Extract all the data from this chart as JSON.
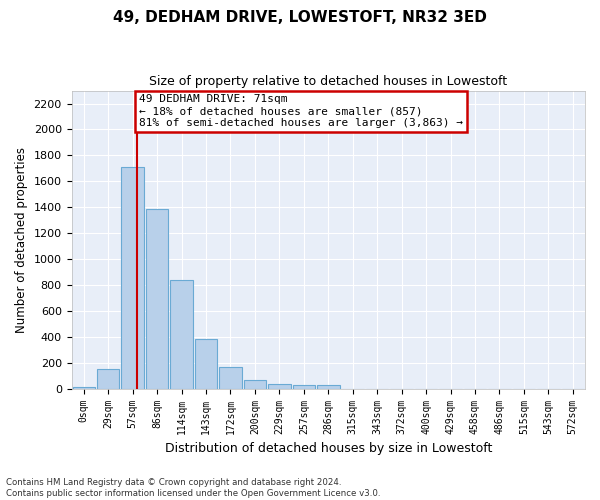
{
  "title": "49, DEDHAM DRIVE, LOWESTOFT, NR32 3ED",
  "subtitle": "Size of property relative to detached houses in Lowestoft",
  "xlabel": "Distribution of detached houses by size in Lowestoft",
  "ylabel": "Number of detached properties",
  "bar_color": "#b8d0ea",
  "bar_edge_color": "#6aaad4",
  "background_color": "#e8eef8",
  "grid_color": "#ffffff",
  "bin_labels": [
    "0sqm",
    "29sqm",
    "57sqm",
    "86sqm",
    "114sqm",
    "143sqm",
    "172sqm",
    "200sqm",
    "229sqm",
    "257sqm",
    "286sqm",
    "315sqm",
    "343sqm",
    "372sqm",
    "400sqm",
    "429sqm",
    "458sqm",
    "486sqm",
    "515sqm",
    "543sqm",
    "572sqm"
  ],
  "bar_values": [
    15,
    155,
    1710,
    1390,
    835,
    385,
    165,
    65,
    35,
    28,
    28,
    0,
    0,
    0,
    0,
    0,
    0,
    0,
    0,
    0,
    0
  ],
  "ylim": [
    0,
    2300
  ],
  "yticks": [
    0,
    200,
    400,
    600,
    800,
    1000,
    1200,
    1400,
    1600,
    1800,
    2000,
    2200
  ],
  "property_line_x": 2.18,
  "annotation_title": "49 DEDHAM DRIVE: 71sqm",
  "annotation_line1": "← 18% of detached houses are smaller (857)",
  "annotation_line2": "81% of semi-detached houses are larger (3,863) →",
  "annotation_box_color": "#ffffff",
  "annotation_border_color": "#cc0000",
  "footer_line1": "Contains HM Land Registry data © Crown copyright and database right 2024.",
  "footer_line2": "Contains public sector information licensed under the Open Government Licence v3.0."
}
